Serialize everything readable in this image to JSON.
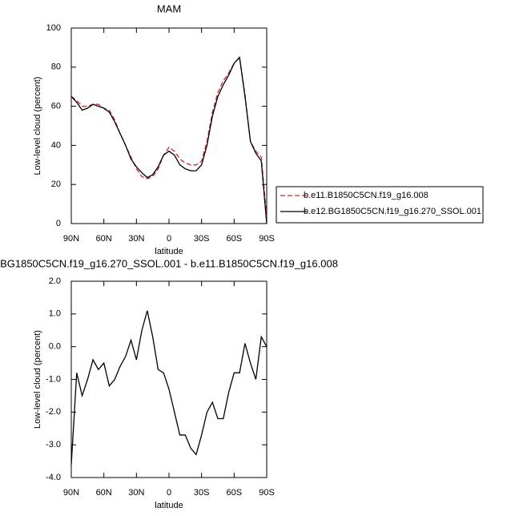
{
  "chart_data": [
    {
      "type": "line",
      "title": "MAM",
      "xlabel": "latitude",
      "ylabel": "Low-level cloud (percent)",
      "x": [
        90,
        85,
        80,
        75,
        70,
        65,
        60,
        55,
        50,
        45,
        40,
        35,
        30,
        25,
        20,
        15,
        10,
        5,
        0,
        -5,
        -10,
        -15,
        -20,
        -25,
        -30,
        -35,
        -40,
        -45,
        -50,
        -55,
        -60,
        -65,
        -70,
        -75,
        -80,
        -85,
        -90
      ],
      "series": [
        {
          "name": "b.e11.B1850C5CN.f19_g16.008",
          "color": "#d62728",
          "dash": true,
          "values": [
            65,
            63,
            60,
            60,
            61,
            61,
            59,
            58,
            53,
            46,
            40,
            34,
            28,
            24,
            23,
            24,
            28,
            35,
            39,
            37,
            33,
            31,
            30,
            30,
            32,
            42,
            57,
            67,
            73,
            77,
            82,
            85,
            66,
            42,
            37,
            34,
            3
          ]
        },
        {
          "name": "b.e12.BG1850C5CN.f19_g16.270_SSOL.001",
          "color": "#000000",
          "dash": false,
          "values": [
            65,
            62,
            58,
            59,
            61,
            60,
            59,
            57,
            52,
            46,
            40,
            33,
            29,
            26,
            23.5,
            25,
            29,
            35,
            37,
            35,
            30,
            28,
            27,
            27,
            30,
            40,
            55,
            65,
            71,
            76,
            82,
            85,
            65,
            42,
            36,
            32,
            0
          ]
        }
      ],
      "xlim": [
        90,
        -90
      ],
      "xticks": [
        {
          "value": 90,
          "label": "90N"
        },
        {
          "value": 60,
          "label": "60N"
        },
        {
          "value": 30,
          "label": "30N"
        },
        0,
        {
          "value": -30,
          "label": "30S"
        },
        {
          "value": -60,
          "label": "60S"
        },
        {
          "value": -90,
          "label": "90S"
        }
      ],
      "ylim": [
        0,
        100
      ],
      "yticks": [
        0,
        20,
        40,
        60,
        80,
        100
      ],
      "legend": "right"
    },
    {
      "type": "line",
      "title": "BG1850C5CN.f19_g16.270_SSOL.001 - b.e11.B1850C5CN.f19_g16.008",
      "xlabel": "latitude",
      "ylabel": "Low-level cloud (percent)",
      "x": [
        90,
        85,
        80,
        75,
        70,
        65,
        60,
        55,
        50,
        45,
        40,
        35,
        30,
        25,
        20,
        15,
        10,
        5,
        0,
        -5,
        -10,
        -15,
        -20,
        -25,
        -30,
        -35,
        -40,
        -45,
        -50,
        -55,
        -60,
        -65,
        -70,
        -75,
        -80,
        -85,
        -90
      ],
      "series": [
        {
          "color": "#000000",
          "dash": false,
          "values": [
            -3.6,
            -0.8,
            -1.5,
            -1.0,
            -0.4,
            -0.7,
            -0.5,
            -1.2,
            -1.0,
            -0.6,
            -0.3,
            0.2,
            -0.4,
            0.5,
            1.1,
            0.3,
            -0.7,
            -0.8,
            -1.3,
            -2.0,
            -2.7,
            -2.7,
            -3.1,
            -3.3,
            -2.7,
            -2.0,
            -1.7,
            -2.2,
            -2.2,
            -1.4,
            -0.8,
            -0.8,
            0.1,
            -0.5,
            -1.0,
            0.3,
            0.0
          ]
        }
      ],
      "xlim": [
        90,
        -90
      ],
      "xticks": [
        {
          "value": 90,
          "label": "90N"
        },
        {
          "value": 60,
          "label": "60N"
        },
        {
          "value": 30,
          "label": "30N"
        },
        0,
        {
          "value": -30,
          "label": "30S"
        },
        {
          "value": -60,
          "label": "60S"
        },
        {
          "value": -90,
          "label": "90S"
        }
      ],
      "ylim": [
        -4,
        2
      ],
      "yticks": [
        {
          "value": -4,
          "label": "-4.0"
        },
        {
          "value": -3,
          "label": "-3.0"
        },
        {
          "value": -2,
          "label": "-2.0"
        },
        {
          "value": -1,
          "label": "-1.0"
        },
        {
          "value": 0,
          "label": "0.0"
        },
        {
          "value": 1,
          "label": "1.0"
        },
        {
          "value": 2,
          "label": "2.0"
        }
      ]
    }
  ]
}
